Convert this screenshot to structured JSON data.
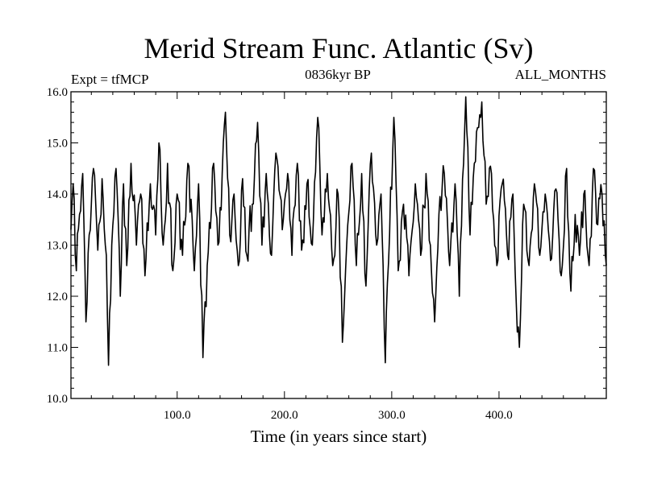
{
  "chart_data": {
    "type": "line",
    "title": "Merid Stream Func. Atlantic (Sv)",
    "subtitle_left": "Expt = tfMCP",
    "subtitle_center": "0836kyr BP",
    "subtitle_right": "ALL_MONTHS",
    "xlabel": "Time (in years since start)",
    "ylabel": "",
    "xlim": [
      1,
      500
    ],
    "ylim": [
      10.0,
      16.0
    ],
    "x_ticks": [
      100,
      200,
      300,
      400
    ],
    "x_tick_labels": [
      "100.0",
      "200.0",
      "300.0",
      "400.0"
    ],
    "y_ticks": [
      10,
      11,
      12,
      13,
      14,
      15,
      16
    ],
    "y_tick_labels": [
      "10.0",
      "11.0",
      "12.0",
      "13.0",
      "14.0",
      "15.0",
      "16.0"
    ],
    "grid": false,
    "line_color": "#000000",
    "series": [
      {
        "name": "Merid Stream Func. Atlantic",
        "x_start": 1,
        "x_step": 1,
        "anchors": [
          [
            1,
            13.3
          ],
          [
            3,
            14.2
          ],
          [
            6,
            12.5
          ],
          [
            9,
            13.6
          ],
          [
            12,
            14.4
          ],
          [
            15,
            11.5
          ],
          [
            18,
            13.2
          ],
          [
            22,
            14.5
          ],
          [
            26,
            12.9
          ],
          [
            30,
            14.3
          ],
          [
            34,
            12.8
          ],
          [
            36,
            10.65
          ],
          [
            39,
            13.0
          ],
          [
            43,
            14.5
          ],
          [
            47,
            12.0
          ],
          [
            50,
            14.2
          ],
          [
            53,
            12.6
          ],
          [
            57,
            14.6
          ],
          [
            62,
            13.0
          ],
          [
            66,
            14.0
          ],
          [
            70,
            12.4
          ],
          [
            75,
            14.2
          ],
          [
            80,
            13.2
          ],
          [
            83,
            15.0
          ],
          [
            87,
            13.0
          ],
          [
            91,
            14.6
          ],
          [
            96,
            12.5
          ],
          [
            100,
            14.0
          ],
          [
            105,
            12.8
          ],
          [
            110,
            14.6
          ],
          [
            116,
            12.5
          ],
          [
            120,
            14.2
          ],
          [
            124,
            10.8
          ],
          [
            128,
            12.6
          ],
          [
            134,
            14.6
          ],
          [
            138,
            13.0
          ],
          [
            142,
            14.4
          ],
          [
            145,
            15.6
          ],
          [
            149,
            13.2
          ],
          [
            153,
            14.0
          ],
          [
            157,
            12.6
          ],
          [
            161,
            14.3
          ],
          [
            165,
            12.8
          ],
          [
            170,
            13.8
          ],
          [
            175,
            15.4
          ],
          [
            179,
            13.0
          ],
          [
            183,
            14.4
          ],
          [
            188,
            12.8
          ],
          [
            192,
            14.8
          ],
          [
            198,
            13.3
          ],
          [
            203,
            14.4
          ],
          [
            207,
            12.8
          ],
          [
            212,
            14.6
          ],
          [
            216,
            12.9
          ],
          [
            221,
            14.2
          ],
          [
            226,
            13.0
          ],
          [
            231,
            15.5
          ],
          [
            235,
            13.2
          ],
          [
            240,
            14.4
          ],
          [
            245,
            12.6
          ],
          [
            250,
            14.0
          ],
          [
            254,
            11.1
          ],
          [
            258,
            13.0
          ],
          [
            263,
            14.6
          ],
          [
            267,
            12.6
          ],
          [
            272,
            14.4
          ],
          [
            276,
            12.2
          ],
          [
            281,
            14.8
          ],
          [
            286,
            13.0
          ],
          [
            290,
            14.0
          ],
          [
            294,
            10.7
          ],
          [
            298,
            13.2
          ],
          [
            302,
            15.5
          ],
          [
            306,
            12.5
          ],
          [
            311,
            13.8
          ],
          [
            316,
            12.4
          ],
          [
            322,
            14.2
          ],
          [
            327,
            12.8
          ],
          [
            332,
            14.4
          ],
          [
            336,
            13.0
          ],
          [
            340,
            11.5
          ],
          [
            344,
            13.6
          ],
          [
            349,
            14.4
          ],
          [
            354,
            12.6
          ],
          [
            359,
            14.2
          ],
          [
            363,
            12.0
          ],
          [
            367,
            14.6
          ],
          [
            369,
            15.9
          ],
          [
            373,
            13.2
          ],
          [
            377,
            14.6
          ],
          [
            381,
            15.3
          ],
          [
            384,
            15.8
          ],
          [
            388,
            13.8
          ],
          [
            393,
            14.4
          ],
          [
            398,
            12.6
          ],
          [
            403,
            14.2
          ],
          [
            408,
            12.8
          ],
          [
            413,
            14.0
          ],
          [
            417,
            11.3
          ],
          [
            419,
            11.0
          ],
          [
            423,
            13.8
          ],
          [
            428,
            12.6
          ],
          [
            433,
            14.2
          ],
          [
            438,
            12.8
          ],
          [
            443,
            14.0
          ],
          [
            448,
            12.7
          ],
          [
            453,
            14.1
          ],
          [
            458,
            12.4
          ],
          [
            463,
            14.5
          ],
          [
            467,
            12.1
          ],
          [
            471,
            13.6
          ],
          [
            475,
            12.8
          ],
          [
            479,
            14.0
          ],
          [
            484,
            12.6
          ],
          [
            488,
            14.5
          ],
          [
            492,
            13.4
          ],
          [
            496,
            14.0
          ],
          [
            500,
            12.6
          ]
        ]
      }
    ]
  }
}
